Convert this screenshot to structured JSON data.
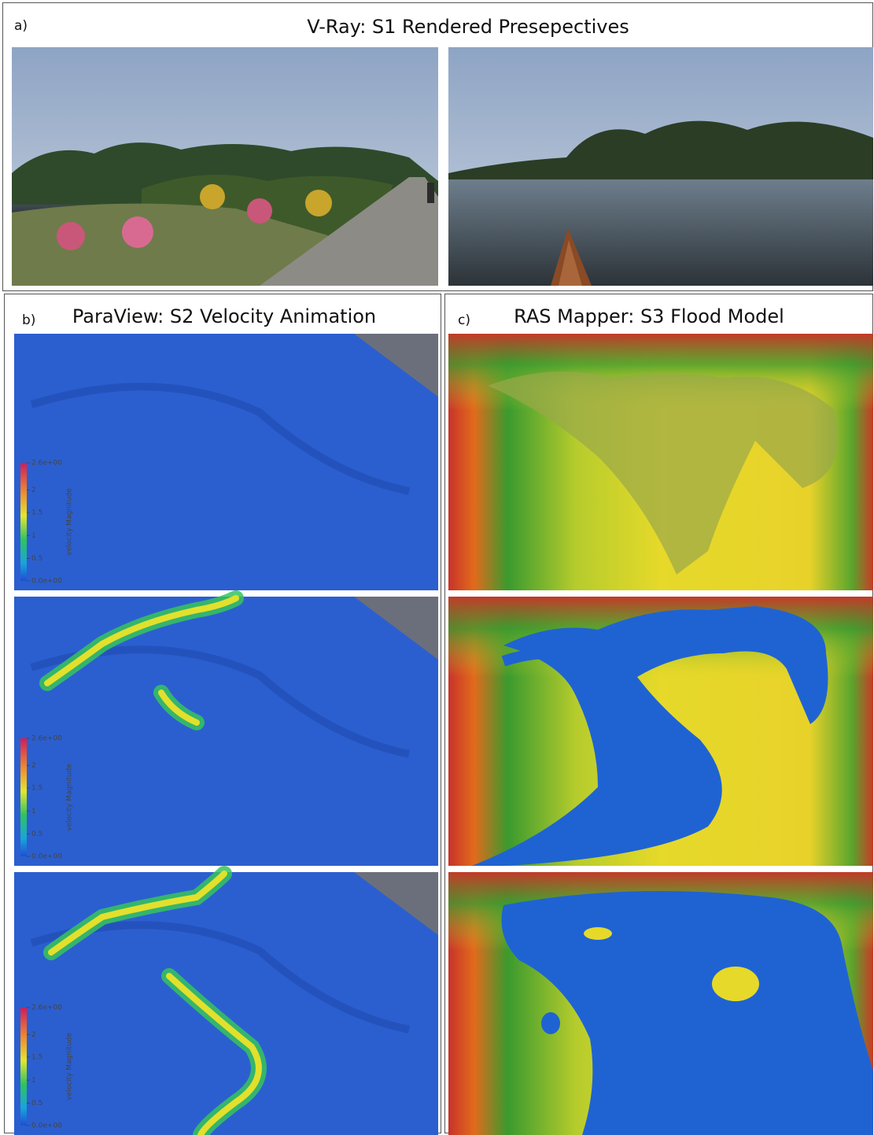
{
  "panel_a": {
    "label": "a)",
    "title": "V-Ray: S1 Rendered Presepectives"
  },
  "panel_b": {
    "label": "b)",
    "title": "ParaView: S2 Velocity Animation",
    "frames": [
      {
        "colorbar": {
          "ticks": [
            "2.6e+00",
            "2",
            "1.5",
            "1",
            "0.5",
            "0.0e+00"
          ],
          "title": "velocity Magnitude"
        }
      },
      {
        "colorbar": {
          "ticks": [
            "2.6e+00",
            "2",
            "1.5",
            "1",
            "0.5",
            "0.0e+00"
          ],
          "title": "velocity Magnitude"
        }
      },
      {
        "colorbar": {
          "ticks": [
            "2.6e+00",
            "2",
            "1.5",
            "1",
            "0.5",
            "0.0e+00"
          ],
          "title": "velocity Magnitude"
        }
      }
    ]
  },
  "panel_c": {
    "label": "c)",
    "title": "RAS Mapper: S3 Flood Model"
  }
}
